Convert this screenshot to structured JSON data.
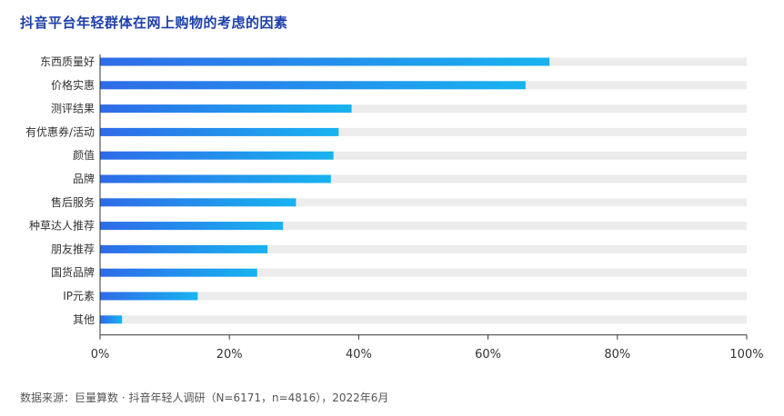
{
  "title": "抖音平台年轻群体在网上购物的考虑的因素",
  "source": "数据来源：巨量算数 · 抖音年轻人调研（N=6171，n=4816），2022年6月",
  "colors": {
    "bar_start": "#2f6be8",
    "bar_end": "#18b3f0",
    "track": "#ececec",
    "title": "#1d3fa8",
    "axis": "#333333"
  },
  "chart_data": {
    "type": "bar",
    "orientation": "horizontal",
    "categories": [
      "东西质量好",
      "价格实惠",
      "测评结果",
      "有优惠券/活动",
      "颜值",
      "品牌",
      "售后服务",
      "种草达人推荐",
      "朋友推荐",
      "国货品牌",
      "IP元素",
      "其他"
    ],
    "values": [
      69.5,
      65.8,
      38.9,
      36.9,
      36.1,
      35.7,
      30.3,
      28.3,
      25.9,
      24.3,
      15.1,
      3.4
    ],
    "xlim": [
      0,
      100
    ],
    "x_ticks": [
      "0%",
      "20%",
      "40%",
      "60%",
      "80%",
      "100%"
    ],
    "xlabel": "",
    "ylabel": "",
    "grid": false
  }
}
